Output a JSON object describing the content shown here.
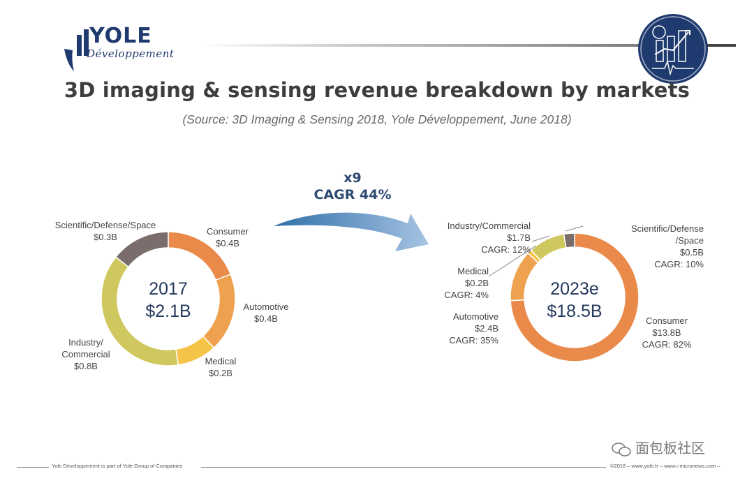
{
  "brand": {
    "name": "YOLE",
    "sub": "Développement"
  },
  "title": "3D imaging & sensing revenue breakdown by markets",
  "subtitle": "(Source: 3D Imaging & Sensing 2018, Yole Développement, June 2018)",
  "growth": {
    "multiplier": "x9",
    "cagr": "CAGR 44%"
  },
  "colors": {
    "consumer": "#e9894a",
    "automotive": "#eea14e",
    "medical": "#f6c349",
    "industry": "#cfc85e",
    "scientific": "#7a6d6b",
    "center_text": "#243a5c",
    "arrow": "#2f6fa8"
  },
  "chart_data": [
    {
      "type": "pie",
      "year": "2017",
      "total": "$2.1B",
      "slices": [
        {
          "name": "Consumer",
          "value": 0.4,
          "label": "$0.4B"
        },
        {
          "name": "Automotive",
          "value": 0.4,
          "label": "$0.4B"
        },
        {
          "name": "Medical",
          "value": 0.2,
          "label": "$0.2B"
        },
        {
          "name": "Industry/ Commercial",
          "value": 0.8,
          "label": "$0.8B"
        },
        {
          "name": "Scientific/Defense/Space",
          "value": 0.3,
          "label": "$0.3B"
        }
      ]
    },
    {
      "type": "pie",
      "year": "2023e",
      "total": "$18.5B",
      "slices": [
        {
          "name": "Consumer",
          "value": 13.8,
          "label": "$13.8B",
          "cagr": "CAGR: 82%"
        },
        {
          "name": "Automotive",
          "value": 2.4,
          "label": "$2.4B",
          "cagr": "CAGR: 35%"
        },
        {
          "name": "Medical",
          "value": 0.2,
          "label": "$0.2B",
          "cagr": "CAGR: 4%"
        },
        {
          "name": "Industry/Commercial",
          "value": 1.7,
          "label": "$1.7B",
          "cagr": "CAGR: 12%"
        },
        {
          "name": "Scientific/Defense /Space",
          "value": 0.5,
          "label": "$0.5B",
          "cagr": "CAGR: 10%"
        }
      ]
    }
  ],
  "labels2017": {
    "scientific": {
      "name": "Scientific/Defense/Space",
      "value": "$0.3B"
    },
    "consumer": {
      "name": "Consumer",
      "value": "$0.4B"
    },
    "automotive": {
      "name": "Automotive",
      "value": "$0.4B"
    },
    "medical": {
      "name": "Medical",
      "value": "$0.2B"
    },
    "industry": {
      "name1": "Industry/",
      "name2": "Commercial",
      "value": "$0.8B"
    }
  },
  "labels2023": {
    "industry": {
      "name": "Industry/Commercial",
      "value": "$1.7B",
      "cagr": "CAGR: 12%"
    },
    "scientific": {
      "name1": "Scientific/Defense",
      "name2": "/Space",
      "value": "$0.5B",
      "cagr": "CAGR: 10%"
    },
    "medical": {
      "name": "Medical",
      "value": "$0.2B",
      "cagr": "CAGR: 4%"
    },
    "automotive": {
      "name": "Automotive",
      "value": "$2.4B",
      "cagr": "CAGR: 35%"
    },
    "consumer": {
      "name": "Consumer",
      "value": "$13.8B",
      "cagr": "CAGR: 82%"
    }
  },
  "footer": {
    "left": "Yole Développement is part of Yole Group of Companies",
    "right": "©2018 – www.yole.fr – www.i-micronews.com –"
  },
  "watermark": "面包板社区"
}
